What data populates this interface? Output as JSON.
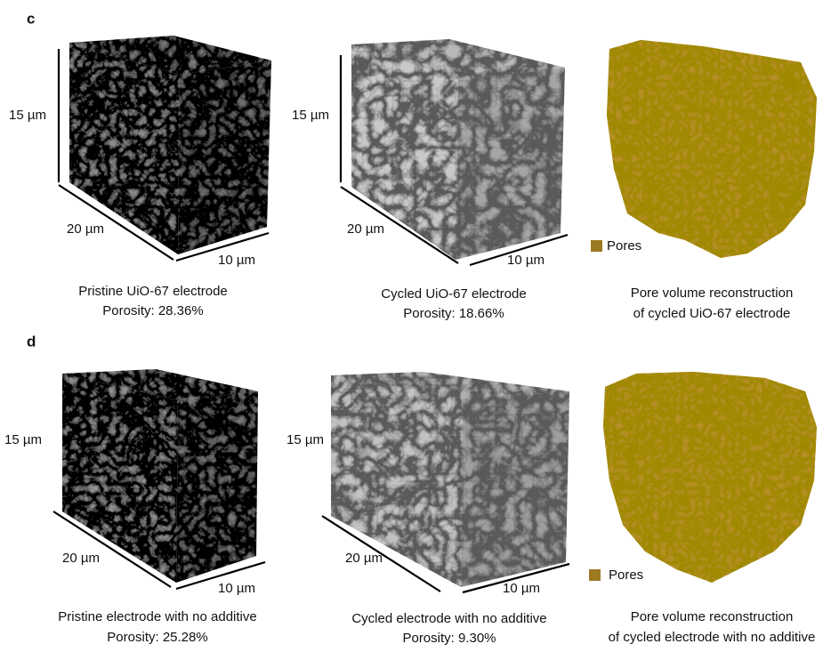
{
  "panels": [
    {
      "label": "c",
      "items": [
        {
          "height_label": "15 µm",
          "length_label": "20 µm",
          "depth_label": "10 µm",
          "caption": [
            "Pristine UiO-67 electrode",
            "Porosity:  28.36%"
          ]
        },
        {
          "height_label": "15 µm",
          "length_label": "20 µm",
          "depth_label": "10 µm",
          "caption": [
            "Cycled UiO-67 electrode",
            "Porosity:  18.66%"
          ]
        },
        {
          "legend": "Pores",
          "caption": [
            "Pore volume reconstruction",
            "of cycled UiO-67 electrode"
          ]
        }
      ]
    },
    {
      "label": "d",
      "items": [
        {
          "height_label": "15 µm",
          "length_label": "20 µm",
          "depth_label": "10 µm",
          "caption": [
            "Pristine electrode with no additive",
            "Porosity:  25.28%"
          ]
        },
        {
          "height_label": "15 µm",
          "length_label": "20 µm",
          "depth_label": "10 µm",
          "caption": [
            "Cycled electrode with no additive",
            "Porosity:  9.30%"
          ]
        },
        {
          "legend": "Pores",
          "caption": [
            "Pore volume reconstruction",
            "of cycled electrode with no additive"
          ]
        }
      ]
    }
  ]
}
